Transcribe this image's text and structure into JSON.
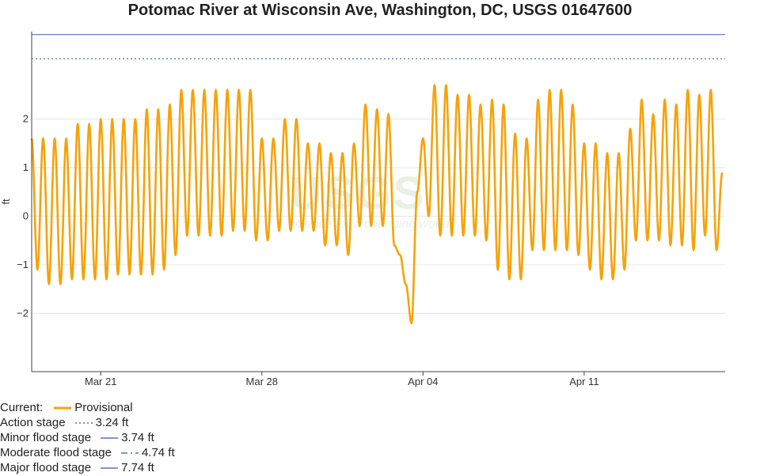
{
  "title": "Potomac River at Wisconsin Ave, Washington, DC, USGS 01647600",
  "colors": {
    "series": "#f5a30a",
    "action": "#5470c6",
    "minor": "#5470c6",
    "moderate": "#5470c6",
    "major": "#5470c6",
    "grid": "#e6e6e6",
    "axis": "#444444"
  },
  "watermark": {
    "logo": "USGS",
    "tagline": "science for a changing world"
  },
  "legend": {
    "current_label": "Current:",
    "series_label": "Provisional",
    "action_label": "Action stage",
    "action_value": "3.24 ft",
    "minor_label": "Minor flood stage",
    "minor_value": "3.74 ft",
    "moderate_label": "Moderate flood stage",
    "moderate_value": "4.74 ft",
    "major_label": "Major flood stage",
    "major_value": "7.74 ft"
  },
  "chart_data": {
    "type": "line",
    "title": "Potomac River at Wisconsin Ave, Washington, DC, USGS 01647600",
    "xlabel": "",
    "ylabel": "ft",
    "xlim": [
      "2024-03-18",
      "2024-04-17T03:00"
    ],
    "ylim": [
      -3.2,
      3.8
    ],
    "yticks": [
      -2,
      -1,
      0,
      1,
      2
    ],
    "ytick_labels": [
      "−2",
      "−1",
      "0",
      "1",
      "2"
    ],
    "xticks": [
      "2024-03-21",
      "2024-03-28",
      "2024-04-04",
      "2024-04-11"
    ],
    "xtick_labels": [
      "Mar 21",
      "Mar 28",
      "Apr 04",
      "Apr 11"
    ],
    "grid": true,
    "thresholds": [
      {
        "name": "Action stage",
        "value": 3.24,
        "style": "dotted"
      },
      {
        "name": "Minor flood stage",
        "value": 3.74,
        "style": "solid"
      }
    ],
    "series": [
      {
        "name": "Provisional",
        "tide_period_hours": 12.42,
        "points": [
          [
            "2024-03-18",
            1.6
          ],
          [
            "2024-03-18T06:00",
            -1.1
          ],
          [
            "2024-03-18T12:00",
            1.6
          ],
          [
            "2024-03-18T18:00",
            -1.4
          ],
          [
            "2024-03-19",
            1.6
          ],
          [
            "2024-03-19T06:00",
            -1.4
          ],
          [
            "2024-03-19T12:00",
            1.6
          ],
          [
            "2024-03-19T18:00",
            -1.3
          ],
          [
            "2024-03-20",
            1.9
          ],
          [
            "2024-03-20T06:00",
            -1.3
          ],
          [
            "2024-03-20T12:00",
            1.9
          ],
          [
            "2024-03-20T18:00",
            -1.3
          ],
          [
            "2024-03-21",
            2.0
          ],
          [
            "2024-03-21T06:00",
            -1.3
          ],
          [
            "2024-03-21T12:00",
            2.0
          ],
          [
            "2024-03-21T18:00",
            -1.2
          ],
          [
            "2024-03-22",
            2.0
          ],
          [
            "2024-03-22T06:00",
            -1.2
          ],
          [
            "2024-03-22T12:00",
            2.0
          ],
          [
            "2024-03-22T18:00",
            -1.2
          ],
          [
            "2024-03-23",
            2.2
          ],
          [
            "2024-03-23T06:00",
            -1.2
          ],
          [
            "2024-03-23T12:00",
            2.2
          ],
          [
            "2024-03-23T18:00",
            -1.1
          ],
          [
            "2024-03-24",
            2.3
          ],
          [
            "2024-03-24T06:00",
            -0.8
          ],
          [
            "2024-03-24T12:00",
            2.6
          ],
          [
            "2024-03-24T18:00",
            -0.4
          ],
          [
            "2024-03-25",
            2.6
          ],
          [
            "2024-03-25T06:00",
            -0.4
          ],
          [
            "2024-03-25T12:00",
            2.6
          ],
          [
            "2024-03-25T18:00",
            -0.4
          ],
          [
            "2024-03-26",
            2.6
          ],
          [
            "2024-03-26T06:00",
            -0.4
          ],
          [
            "2024-03-26T12:00",
            2.6
          ],
          [
            "2024-03-26T18:00",
            -0.3
          ],
          [
            "2024-03-27",
            2.6
          ],
          [
            "2024-03-27T06:00",
            -0.3
          ],
          [
            "2024-03-27T12:00",
            2.6
          ],
          [
            "2024-03-27T18:00",
            -0.5
          ],
          [
            "2024-03-28",
            1.6
          ],
          [
            "2024-03-28T06:00",
            -0.5
          ],
          [
            "2024-03-28T12:00",
            1.6
          ],
          [
            "2024-03-28T18:00",
            -0.3
          ],
          [
            "2024-03-29",
            2.0
          ],
          [
            "2024-03-29T06:00",
            -0.3
          ],
          [
            "2024-03-29T12:00",
            2.0
          ],
          [
            "2024-03-29T18:00",
            -0.3
          ],
          [
            "2024-03-30",
            1.5
          ],
          [
            "2024-03-30T06:00",
            -0.3
          ],
          [
            "2024-03-30T12:00",
            1.5
          ],
          [
            "2024-03-30T18:00",
            -0.6
          ],
          [
            "2024-03-31",
            1.3
          ],
          [
            "2024-03-31T06:00",
            -0.6
          ],
          [
            "2024-03-31T12:00",
            1.3
          ],
          [
            "2024-03-31T18:00",
            -0.8
          ],
          [
            "2024-04-01",
            1.5
          ],
          [
            "2024-04-01T06:00",
            -0.2
          ],
          [
            "2024-04-01T12:00",
            2.3
          ],
          [
            "2024-04-01T18:00",
            -0.2
          ],
          [
            "2024-04-02",
            2.2
          ],
          [
            "2024-04-02T06:00",
            -0.2
          ],
          [
            "2024-04-02T12:00",
            2.1
          ],
          [
            "2024-04-02T18:00",
            -0.6
          ],
          [
            "2024-04-03",
            -0.8
          ],
          [
            "2024-04-03T06:00",
            -1.4
          ],
          [
            "2024-04-03T12:00",
            -2.2
          ],
          [
            "2024-04-03T18:00",
            0.5
          ],
          [
            "2024-04-04",
            1.6
          ],
          [
            "2024-04-04T06:00",
            0.0
          ],
          [
            "2024-04-04T12:00",
            2.7
          ],
          [
            "2024-04-04T18:00",
            -0.4
          ],
          [
            "2024-04-05",
            2.7
          ],
          [
            "2024-04-05T06:00",
            -0.4
          ],
          [
            "2024-04-05T12:00",
            2.5
          ],
          [
            "2024-04-05T18:00",
            -0.4
          ],
          [
            "2024-04-06",
            2.5
          ],
          [
            "2024-04-06T06:00",
            -0.4
          ],
          [
            "2024-04-06T12:00",
            2.3
          ],
          [
            "2024-04-06T18:00",
            -0.5
          ],
          [
            "2024-04-07",
            2.4
          ],
          [
            "2024-04-07T06:00",
            -1.1
          ],
          [
            "2024-04-07T12:00",
            2.3
          ],
          [
            "2024-04-07T18:00",
            -1.3
          ],
          [
            "2024-04-08",
            1.7
          ],
          [
            "2024-04-08T06:00",
            -1.3
          ],
          [
            "2024-04-08T12:00",
            1.6
          ],
          [
            "2024-04-08T18:00",
            -0.7
          ],
          [
            "2024-04-09",
            2.4
          ],
          [
            "2024-04-09T06:00",
            -0.7
          ],
          [
            "2024-04-09T12:00",
            2.6
          ],
          [
            "2024-04-09T18:00",
            -0.7
          ],
          [
            "2024-04-10",
            2.6
          ],
          [
            "2024-04-10T06:00",
            -0.7
          ],
          [
            "2024-04-10T12:00",
            2.3
          ],
          [
            "2024-04-10T18:00",
            -0.8
          ],
          [
            "2024-04-11",
            1.5
          ],
          [
            "2024-04-11T06:00",
            -1.1
          ],
          [
            "2024-04-11T12:00",
            1.5
          ],
          [
            "2024-04-11T18:00",
            -1.3
          ],
          [
            "2024-04-12",
            1.3
          ],
          [
            "2024-04-12T06:00",
            -1.3
          ],
          [
            "2024-04-12T12:00",
            1.3
          ],
          [
            "2024-04-12T18:00",
            -1.1
          ],
          [
            "2024-04-13",
            1.8
          ],
          [
            "2024-04-13T06:00",
            -0.5
          ],
          [
            "2024-04-13T12:00",
            2.4
          ],
          [
            "2024-04-13T18:00",
            -0.5
          ],
          [
            "2024-04-14",
            2.1
          ],
          [
            "2024-04-14T06:00",
            -0.5
          ],
          [
            "2024-04-14T12:00",
            2.4
          ],
          [
            "2024-04-14T18:00",
            -0.6
          ],
          [
            "2024-04-15",
            2.3
          ],
          [
            "2024-04-15T06:00",
            -0.6
          ],
          [
            "2024-04-15T12:00",
            2.6
          ],
          [
            "2024-04-15T18:00",
            -0.7
          ],
          [
            "2024-04-16",
            2.5
          ],
          [
            "2024-04-16T06:00",
            -0.4
          ],
          [
            "2024-04-16T12:00",
            2.6
          ],
          [
            "2024-04-16T18:00",
            -0.7
          ],
          [
            "2024-04-17",
            0.9
          ]
        ]
      }
    ]
  }
}
